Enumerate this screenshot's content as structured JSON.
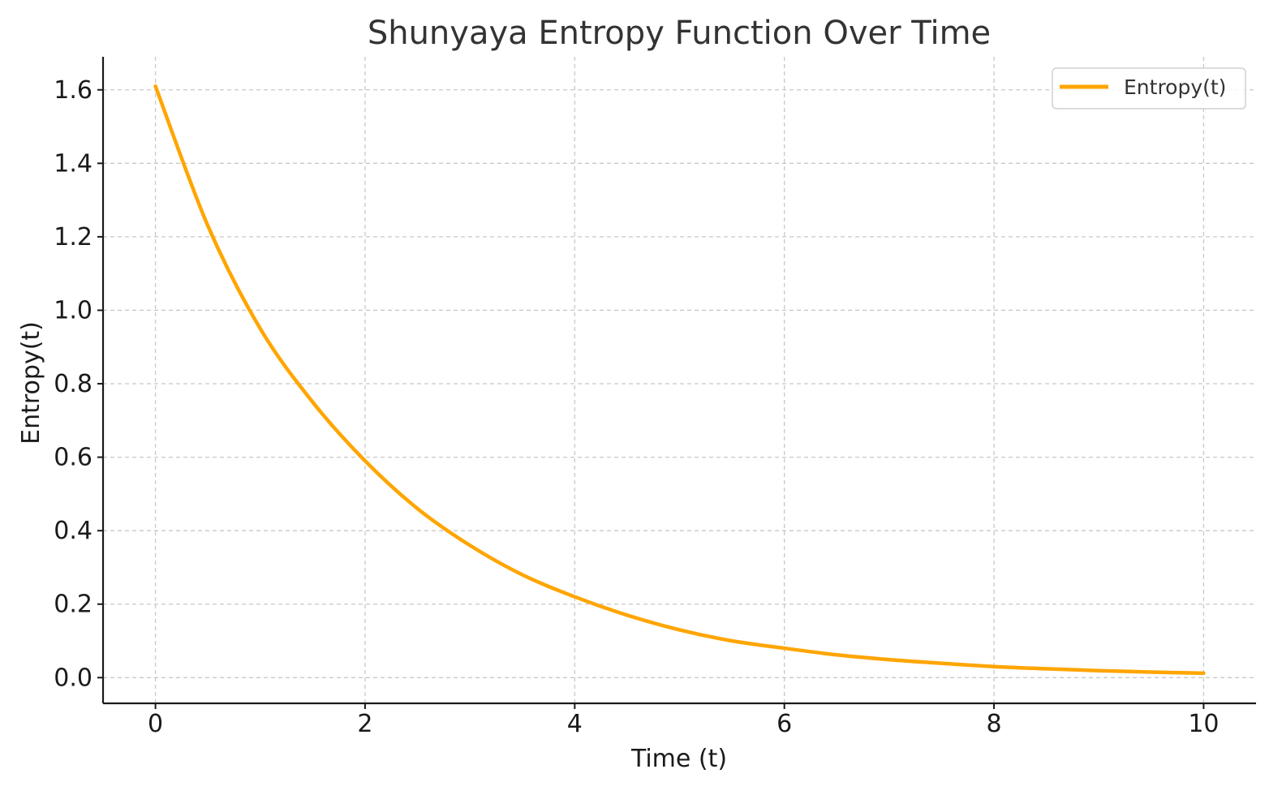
{
  "chart_data": {
    "type": "line",
    "title": "Shunyaya Entropy Function Over Time",
    "xlabel": "Time (t)",
    "ylabel": "Entropy(t)",
    "xlim": [
      -0.5,
      10.5
    ],
    "ylim": [
      -0.07,
      1.69
    ],
    "xticks": [
      0,
      2,
      4,
      6,
      8,
      10
    ],
    "xtick_labels": [
      "0",
      "2",
      "4",
      "6",
      "8",
      "10"
    ],
    "yticks": [
      0.0,
      0.2,
      0.4,
      0.6,
      0.8,
      1.0,
      1.2,
      1.4,
      1.6
    ],
    "ytick_labels": [
      "0.0",
      "0.2",
      "0.4",
      "0.6",
      "0.8",
      "1.0",
      "1.2",
      "1.4",
      "1.6"
    ],
    "grid": true,
    "legend_position": "top-right",
    "series": [
      {
        "name": "Entropy(t)",
        "color": "#FFA500",
        "x": [
          0,
          0.5,
          1,
          1.5,
          2,
          2.5,
          3,
          3.5,
          4,
          4.5,
          5,
          5.5,
          6,
          6.5,
          7,
          7.5,
          8,
          8.5,
          9,
          9.5,
          10
        ],
        "y": [
          1.61,
          1.23,
          0.95,
          0.75,
          0.59,
          0.46,
          0.36,
          0.28,
          0.22,
          0.17,
          0.13,
          0.1,
          0.08,
          0.062,
          0.049,
          0.039,
          0.03,
          0.024,
          0.019,
          0.015,
          0.012
        ]
      }
    ]
  }
}
